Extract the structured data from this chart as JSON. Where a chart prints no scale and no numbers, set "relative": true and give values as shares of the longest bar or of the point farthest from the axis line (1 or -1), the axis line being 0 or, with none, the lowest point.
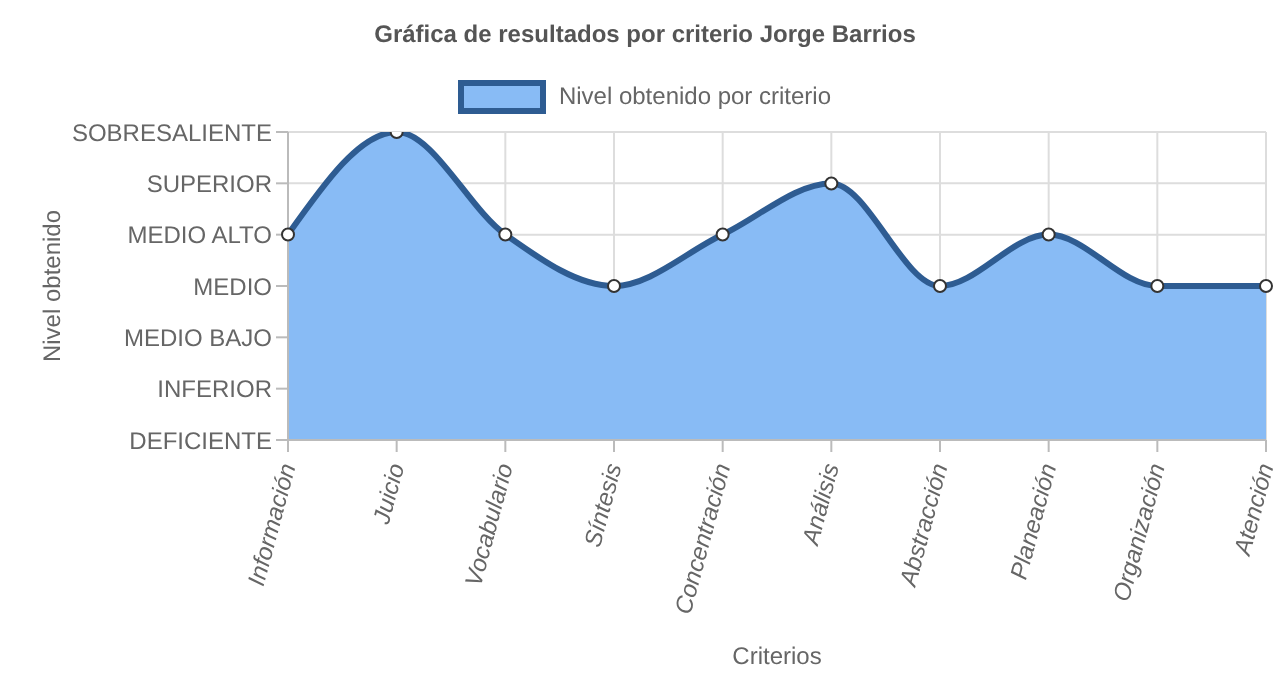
{
  "chart_data": {
    "type": "area",
    "title": "Gráfica de resultados por criterio Jorge Barrios",
    "xlabel": "Criterios",
    "categories": [
      "Información",
      "Juicio",
      "Vocabulario",
      "Síntesis",
      "Concentración",
      "Análisis",
      "Abstracción",
      "Planeación",
      "Organización",
      "Atención"
    ],
    "series": [
      {
        "name": "Nivel obtenido por criterio",
        "color": "#2e5c92",
        "values": [
          0.667,
          1,
          0.667,
          0.5,
          0.667,
          0.833,
          0.5,
          0.667,
          0.5,
          0.5
        ]
      }
    ],
    "relative": true,
    "annotations": [
      "Nivel obtenido",
      "DEFICIENTE",
      "INFERIOR",
      "MEDIO BAJO",
      "MEDIO",
      "MEDIO ALTO",
      "SUPERIOR",
      "SOBRESALIENTE"
    ],
    "grid": true,
    "legend": "top",
    "marker": "circle",
    "line_style": "solid"
  }
}
